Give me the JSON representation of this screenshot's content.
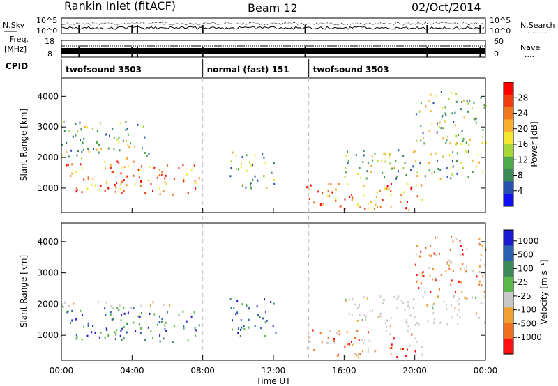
{
  "header": {
    "radar": "Rankin Inlet (fitACF)",
    "beam": "Beam 12",
    "date": "02/Oct/2014"
  },
  "noise_panel": {
    "left_label": "N.Sky",
    "left_ticks": [
      "10^5",
      "10^0"
    ],
    "right_ticks": [
      "10^5",
      "10^0"
    ],
    "right_label": "N.Search",
    "right_dots": "........"
  },
  "freq_panel": {
    "left_label_1": "Freq.",
    "left_label_2": "[MHz]",
    "left_ticks": [
      "18",
      "8"
    ],
    "right_ticks": [
      "60",
      "0"
    ],
    "right_label": "Nave",
    "right_dots": "...."
  },
  "cpid": {
    "label": "CPID",
    "segments": [
      {
        "name": "twofsound 3503",
        "start_h": 0.0,
        "end_h": 8.0
      },
      {
        "name": "normal (fast) 151",
        "start_h": 8.0,
        "end_h": 14.0
      },
      {
        "name": "twofsound 3503",
        "start_h": 14.0,
        "end_h": 24.0
      }
    ]
  },
  "axes": {
    "ylabel": "Slant Range [km]",
    "yticks": [
      "1000",
      "2000",
      "3000",
      "4000"
    ],
    "xticks": [
      "00:00",
      "04:00",
      "08:00",
      "12:00",
      "16:00",
      "20:00",
      "00:00"
    ],
    "xlabel": "Time UT"
  },
  "colorbars": {
    "power": {
      "label": "Power [dB]",
      "ticks": [
        "4",
        "8",
        "12",
        "16",
        "20",
        "24",
        "28"
      ],
      "colors": [
        "#1010f0",
        "#2850b0",
        "#3a8a55",
        "#4caa4c",
        "#a8d838",
        "#f2e830",
        "#f8b030",
        "#f07820",
        "#f03c10",
        "#ff0000"
      ]
    },
    "velocity": {
      "label": "Velocity [m s⁻¹]",
      "ticks": [
        "1000",
        "500",
        "100",
        "25",
        "-25",
        "-100",
        "-500",
        "-1000"
      ],
      "colors": [
        "#1a1ad0",
        "#2a60b0",
        "#3c8a5a",
        "#5ab84a",
        "#c8c8c8",
        "#f0a030",
        "#f07020",
        "#ff1010"
      ]
    }
  },
  "chart_data": [
    {
      "type": "heatmap",
      "title": "Power",
      "xlabel": "Time UT",
      "ylabel": "Slant Range [km]",
      "xlim_hours": [
        0,
        24
      ],
      "ylim_km": [
        200,
        4600
      ],
      "clim_db": [
        0,
        30
      ],
      "regions": [
        {
          "t": [
            0.0,
            7.8
          ],
          "r": [
            800,
            1900
          ],
          "level": "high"
        },
        {
          "t": [
            0.0,
            5.0
          ],
          "r": [
            2000,
            3200
          ],
          "level": "medium"
        },
        {
          "t": [
            9.5,
            12.2
          ],
          "r": [
            1000,
            2200
          ],
          "level": "medium"
        },
        {
          "t": [
            13.8,
            20.5
          ],
          "r": [
            300,
            1200
          ],
          "level": "high"
        },
        {
          "t": [
            16.0,
            24.0
          ],
          "r": [
            1300,
            2300
          ],
          "level": "medium"
        },
        {
          "t": [
            20.0,
            24.0
          ],
          "r": [
            2400,
            4200
          ],
          "level": "medium"
        }
      ]
    },
    {
      "type": "heatmap",
      "title": "Velocity",
      "xlabel": "Time UT",
      "ylabel": "Slant Range [km]",
      "xlim_hours": [
        0,
        24
      ],
      "ylim_km": [
        200,
        4600
      ],
      "clim_ms": [
        -1000,
        1000
      ],
      "regions": [
        {
          "t": [
            0.0,
            7.8
          ],
          "r": [
            800,
            1900
          ],
          "level": "positive"
        },
        {
          "t": [
            0.0,
            7.8
          ],
          "r": [
            1900,
            2100
          ],
          "level": "near-zero"
        },
        {
          "t": [
            9.5,
            12.2
          ],
          "r": [
            1000,
            2200
          ],
          "level": "positive"
        },
        {
          "t": [
            13.8,
            20.5
          ],
          "r": [
            300,
            1200
          ],
          "level": "negative"
        },
        {
          "t": [
            16.0,
            24.0
          ],
          "r": [
            1300,
            2300
          ],
          "level": "near-zero"
        },
        {
          "t": [
            20.0,
            24.0
          ],
          "r": [
            2400,
            4200
          ],
          "level": "negative"
        }
      ]
    }
  ]
}
